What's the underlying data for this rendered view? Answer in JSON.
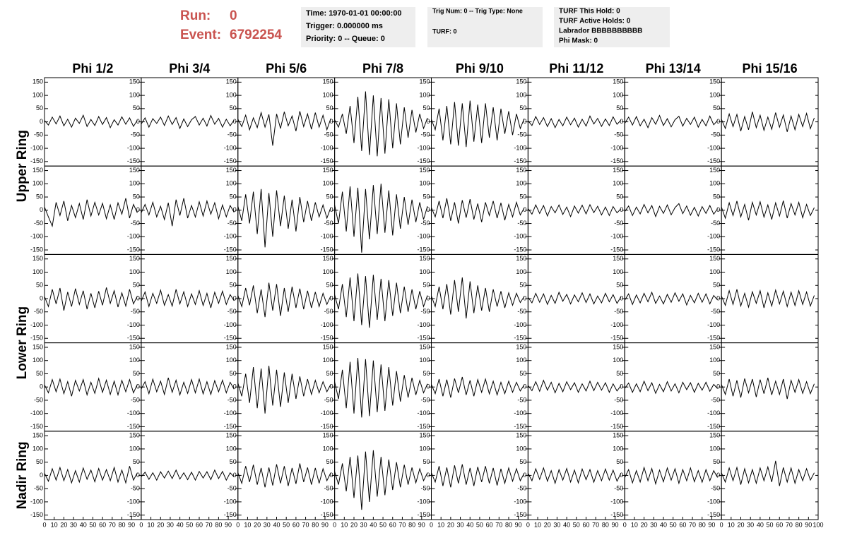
{
  "header": {
    "run_label": "Run:",
    "run": "0",
    "event_label": "Event:",
    "event": "6792254",
    "box1": [
      "Time: 1970-01-01 00:00:00",
      "Trigger: 0.000000 ms",
      "Priority: 0 -- Queue: 0"
    ],
    "box2": [
      "Trig Num: 0 -- Trig Type: None",
      "TURF: 0"
    ],
    "box3": [
      "TURF This Hold: 0",
      "TURF Active Holds: 0",
      "Labrador BBBBBBBBBB",
      "Phi Mask: 0"
    ]
  },
  "chart_data": {
    "type": "line",
    "column_titles": [
      "Phi 1/2",
      "Phi 3/4",
      "Phi 5/6",
      "Phi 7/8",
      "Phi 9/10",
      "Phi 11/12",
      "Phi 13/14",
      "Phi 15/16"
    ],
    "row_titles": [
      "Upper Ring",
      "Lower Ring",
      "Nadir Ring"
    ],
    "color": "#000000",
    "xlim": [
      0,
      100
    ],
    "ylim": [
      -167,
      167
    ],
    "xticks": [
      0,
      10,
      20,
      30,
      40,
      50,
      60,
      70,
      80,
      90,
      100
    ],
    "yticks": [
      -150,
      -100,
      -50,
      0,
      50,
      100,
      150
    ],
    "x": [
      0,
      4,
      8,
      12,
      16,
      20,
      24,
      28,
      32,
      36,
      40,
      44,
      48,
      52,
      56,
      60,
      64,
      68,
      72,
      76,
      80,
      84,
      88,
      92,
      96
    ],
    "panels": [
      [
        [
          5,
          -12,
          18,
          -8,
          22,
          -15,
          10,
          -20,
          14,
          -6,
          25,
          -18,
          9,
          -14,
          20,
          -10,
          16,
          -22,
          8,
          -12,
          19,
          -9,
          15,
          -17,
          6
        ],
        [
          -8,
          15,
          -20,
          12,
          -6,
          18,
          -14,
          22,
          -10,
          16,
          -25,
          11,
          -18,
          8,
          20,
          -12,
          14,
          -16,
          24,
          -9,
          13,
          -20,
          10,
          -15,
          7
        ],
        [
          10,
          -18,
          25,
          -30,
          15,
          -22,
          35,
          -20,
          28,
          -90,
          30,
          -25,
          38,
          -15,
          22,
          -35,
          40,
          -18,
          30,
          -28,
          35,
          -20,
          25,
          -30,
          12
        ],
        [
          8,
          -20,
          30,
          -45,
          60,
          -80,
          95,
          -110,
          115,
          -125,
          100,
          -130,
          90,
          -120,
          85,
          -100,
          70,
          -85,
          55,
          -60,
          45,
          -40,
          30,
          -25,
          15
        ],
        [
          10,
          -30,
          50,
          -70,
          60,
          -85,
          75,
          -90,
          70,
          -95,
          80,
          -75,
          65,
          -80,
          70,
          -60,
          55,
          -70,
          50,
          -45,
          40,
          -50,
          30,
          -25,
          12
        ],
        [
          4,
          -14,
          20,
          -10,
          16,
          -18,
          12,
          -22,
          9,
          -15,
          18,
          -11,
          14,
          -20,
          10,
          -16,
          22,
          -8,
          13,
          -17,
          11,
          -14,
          19,
          -9,
          6
        ],
        [
          -6,
          18,
          -12,
          20,
          -15,
          10,
          -22,
          16,
          -9,
          24,
          -14,
          12,
          -19,
          8,
          21,
          -16,
          13,
          -10,
          18,
          -20,
          9,
          -15,
          22,
          -11,
          5
        ],
        [
          10,
          -25,
          30,
          -18,
          28,
          -35,
          20,
          -30,
          38,
          -22,
          25,
          -32,
          18,
          -28,
          35,
          -20,
          26,
          -38,
          22,
          -30,
          28,
          -18,
          32,
          -26,
          15
        ]
      ],
      [
        [
          12,
          -25,
          -60,
          30,
          -20,
          35,
          -40,
          18,
          -28,
          25,
          -35,
          40,
          -22,
          30,
          -18,
          26,
          -32,
          20,
          -35,
          28,
          -15,
          45,
          -30,
          22,
          -10
        ],
        [
          -10,
          22,
          -18,
          30,
          -25,
          15,
          -35,
          28,
          -60,
          40,
          -20,
          45,
          -30,
          18,
          -26,
          32,
          -22,
          35,
          -15,
          28,
          -32,
          20,
          -25,
          18,
          -8
        ],
        [
          15,
          -40,
          60,
          -50,
          70,
          -90,
          80,
          -140,
          65,
          -100,
          75,
          -60,
          55,
          -70,
          40,
          -80,
          50,
          -45,
          35,
          -40,
          30,
          -25,
          20,
          -30,
          10
        ],
        [
          20,
          -50,
          70,
          -80,
          90,
          -100,
          85,
          -160,
          80,
          -110,
          95,
          -90,
          100,
          -85,
          75,
          -95,
          60,
          -70,
          50,
          -55,
          40,
          -45,
          30,
          -35,
          15
        ],
        [
          10,
          -25,
          35,
          -30,
          45,
          -40,
          30,
          -50,
          38,
          -28,
          42,
          -35,
          25,
          -45,
          30,
          -20,
          35,
          -30,
          28,
          -38,
          22,
          -25,
          30,
          -18,
          8
        ],
        [
          6,
          -15,
          20,
          -12,
          18,
          -22,
          14,
          -10,
          20,
          -16,
          12,
          -24,
          16,
          -11,
          19,
          -14,
          21,
          -9,
          15,
          -18,
          12,
          -20,
          14,
          -10,
          5
        ],
        [
          -5,
          16,
          -20,
          12,
          -14,
          22,
          -10,
          18,
          -24,
          15,
          -12,
          20,
          -17,
          10,
          25,
          -13,
          16,
          -19,
          11,
          -22,
          14,
          -12,
          18,
          -15,
          6
        ],
        [
          12,
          -30,
          28,
          -20,
          35,
          -25,
          22,
          -38,
          30,
          -18,
          32,
          -26,
          20,
          -35,
          28,
          -22,
          36,
          -30,
          25,
          -18,
          30,
          -28,
          22,
          -20,
          10
        ]
      ],
      [
        [
          8,
          -30,
          35,
          -20,
          40,
          -45,
          25,
          -30,
          38,
          -22,
          30,
          -40,
          20,
          -35,
          28,
          -25,
          42,
          -18,
          30,
          -32,
          22,
          -28,
          35,
          -20,
          10
        ],
        [
          -10,
          25,
          -30,
          20,
          -18,
          32,
          -25,
          15,
          -28,
          35,
          -20,
          26,
          -30,
          18,
          -22,
          30,
          -26,
          20,
          -35,
          24,
          -18,
          28,
          -22,
          15,
          -8
        ],
        [
          12,
          -30,
          40,
          -25,
          50,
          -55,
          35,
          -70,
          60,
          -45,
          55,
          -65,
          40,
          -50,
          45,
          -35,
          38,
          -40,
          30,
          -35,
          25,
          -30,
          20,
          -22,
          10
        ],
        [
          15,
          -40,
          55,
          -70,
          80,
          -85,
          95,
          -100,
          85,
          -110,
          90,
          -80,
          75,
          -85,
          70,
          -65,
          60,
          -55,
          45,
          -50,
          35,
          -40,
          28,
          -30,
          12
        ],
        [
          10,
          -30,
          45,
          -40,
          55,
          -60,
          70,
          -50,
          80,
          -75,
          65,
          -55,
          50,
          -45,
          40,
          -50,
          35,
          -30,
          28,
          -35,
          22,
          -25,
          20,
          -15,
          8
        ],
        [
          5,
          -16,
          20,
          -14,
          18,
          -22,
          12,
          -18,
          24,
          -10,
          16,
          -20,
          14,
          -12,
          22,
          -15,
          18,
          -20,
          10,
          -16,
          20,
          -12,
          15,
          -18,
          6
        ],
        [
          -6,
          18,
          -22,
          14,
          -16,
          20,
          -12,
          24,
          -18,
          10,
          -20,
          16,
          -14,
          22,
          -10,
          18,
          -24,
          12,
          -16,
          20,
          -14,
          18,
          -20,
          12,
          -5
        ],
        [
          10,
          -25,
          30,
          -22,
          35,
          -28,
          20,
          -32,
          26,
          -18,
          30,
          -35,
          22,
          -28,
          32,
          -20,
          28,
          -30,
          24,
          -26,
          30,
          -22,
          25,
          -28,
          12
        ]
      ],
      [
        [
          8,
          -22,
          28,
          -18,
          30,
          -25,
          20,
          -35,
          25,
          -15,
          28,
          -30,
          18,
          -24,
          32,
          -20,
          26,
          -28,
          22,
          -30,
          25,
          -18,
          28,
          -22,
          10
        ],
        [
          -8,
          20,
          -25,
          30,
          -18,
          22,
          -28,
          35,
          -20,
          26,
          -30,
          18,
          -24,
          28,
          -22,
          30,
          -26,
          20,
          -28,
          24,
          -18,
          26,
          -22,
          18,
          -8
        ],
        [
          15,
          -35,
          50,
          -60,
          75,
          -80,
          70,
          -100,
          80,
          -70,
          65,
          -75,
          55,
          -60,
          50,
          -45,
          40,
          -35,
          30,
          -28,
          25,
          -22,
          20,
          -18,
          10
        ],
        [
          20,
          -45,
          65,
          -80,
          95,
          -100,
          110,
          -115,
          105,
          -110,
          100,
          -95,
          85,
          -90,
          75,
          -70,
          60,
          -55,
          45,
          -40,
          35,
          -30,
          25,
          -22,
          12
        ],
        [
          10,
          -25,
          30,
          -35,
          28,
          -40,
          32,
          -22,
          38,
          -30,
          25,
          -35,
          28,
          -20,
          30,
          -26,
          22,
          -30,
          18,
          -25,
          22,
          -20,
          18,
          -15,
          8
        ],
        [
          6,
          -14,
          20,
          -16,
          25,
          -12,
          18,
          -22,
          14,
          -18,
          20,
          -10,
          16,
          -20,
          12,
          -15,
          22,
          -14,
          18,
          -12,
          16,
          -20,
          12,
          -15,
          5
        ],
        [
          -5,
          15,
          -20,
          12,
          -18,
          22,
          -14,
          16,
          -24,
          10,
          -18,
          20,
          -15,
          12,
          -22,
          18,
          -10,
          16,
          -20,
          14,
          -12,
          18,
          -16,
          10,
          -6
        ],
        [
          10,
          -28,
          30,
          -35,
          25,
          -40,
          32,
          -22,
          30,
          -38,
          28,
          -25,
          35,
          -30,
          22,
          -28,
          30,
          -45,
          25,
          -20,
          28,
          -24,
          20,
          -25,
          12
        ]
      ],
      [
        [
          8,
          -22,
          25,
          -18,
          30,
          -20,
          22,
          -28,
          18,
          -25,
          28,
          -15,
          20,
          -24,
          26,
          -18,
          22,
          -20,
          30,
          -25,
          20,
          -28,
          35,
          -18,
          10
        ],
        [
          -5,
          12,
          -15,
          10,
          -18,
          14,
          -10,
          16,
          -12,
          20,
          -14,
          10,
          -16,
          12,
          -18,
          15,
          -10,
          14,
          -16,
          20,
          -12,
          15,
          -18,
          10,
          -6
        ],
        [
          10,
          -30,
          35,
          -25,
          40,
          -35,
          28,
          -45,
          30,
          -38,
          42,
          -30,
          35,
          -40,
          28,
          -32,
          45,
          -25,
          30,
          -35,
          28,
          -30,
          25,
          -20,
          10
        ],
        [
          15,
          -35,
          45,
          -60,
          70,
          -85,
          75,
          -130,
          90,
          -100,
          95,
          -80,
          70,
          -75,
          60,
          -55,
          50,
          -45,
          40,
          -35,
          30,
          -28,
          25,
          -20,
          10
        ],
        [
          10,
          -25,
          35,
          -40,
          30,
          -45,
          38,
          -30,
          42,
          -35,
          28,
          -40,
          32,
          -25,
          35,
          -30,
          28,
          -38,
          25,
          -30,
          28,
          -22,
          25,
          -20,
          8
        ],
        [
          8,
          -20,
          25,
          -15,
          28,
          -22,
          18,
          -30,
          22,
          -18,
          26,
          -25,
          20,
          -28,
          24,
          -16,
          22,
          -26,
          18,
          -20,
          24,
          -18,
          20,
          -22,
          8
        ],
        [
          -8,
          22,
          -28,
          18,
          -25,
          30,
          -20,
          26,
          -32,
          20,
          -24,
          28,
          -18,
          25,
          -30,
          22,
          -20,
          28,
          -24,
          18,
          -26,
          22,
          -20,
          18,
          -8
        ],
        [
          10,
          -25,
          28,
          -20,
          30,
          -35,
          25,
          -28,
          22,
          -30,
          28,
          -20,
          32,
          -25,
          55,
          -40,
          30,
          -25,
          28,
          -30,
          22,
          -20,
          25,
          -18,
          10
        ]
      ]
    ]
  }
}
